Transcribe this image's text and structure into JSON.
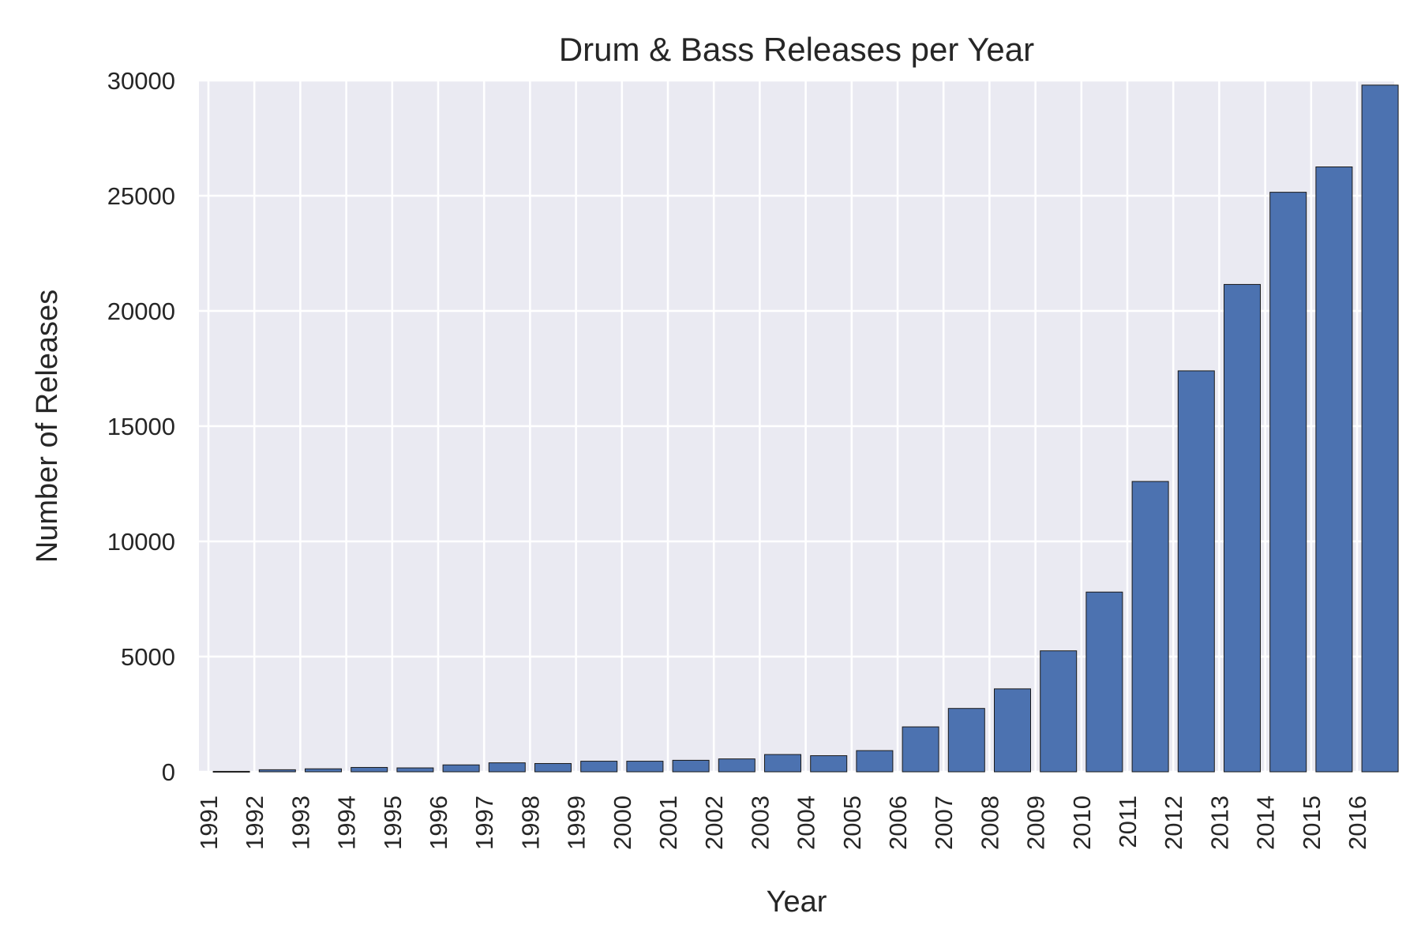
{
  "chart_data": {
    "type": "bar",
    "title": "Drum & Bass Releases per Year",
    "xlabel": "Year",
    "ylabel": "Number of Releases",
    "categories": [
      "1991",
      "1992",
      "1993",
      "1994",
      "1995",
      "1996",
      "1997",
      "1998",
      "1999",
      "2000",
      "2001",
      "2002",
      "2003",
      "2004",
      "2005",
      "2006",
      "2007",
      "2008",
      "2009",
      "2010",
      "2011",
      "2012",
      "2013",
      "2014",
      "2015",
      "2016"
    ],
    "values": [
      20,
      90,
      130,
      190,
      170,
      300,
      390,
      360,
      460,
      460,
      500,
      560,
      750,
      700,
      920,
      1950,
      2750,
      3600,
      5250,
      7800,
      12600,
      17400,
      21150,
      25150,
      26250,
      29800
    ],
    "ylim": [
      0,
      30000
    ],
    "yticks": [
      0,
      5000,
      10000,
      15000,
      20000,
      25000,
      30000
    ],
    "grid": true,
    "bar_color": "#4c72b0",
    "background_color": "#eaeaf2"
  }
}
